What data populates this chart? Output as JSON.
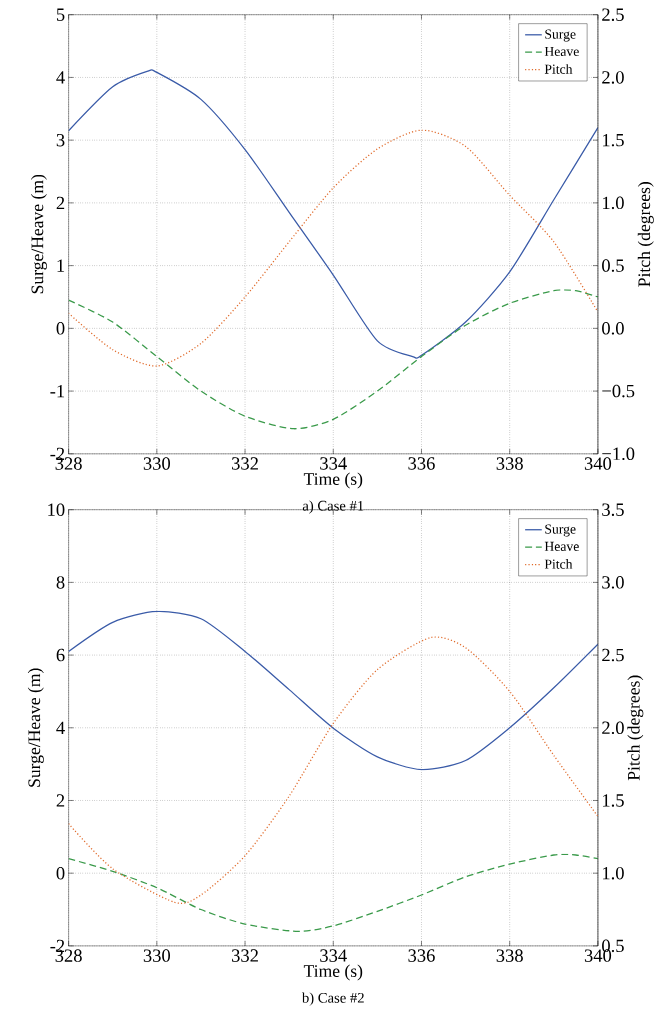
{
  "chart_data": [
    {
      "type": "line",
      "xlabel": "Time (s)",
      "ylabel": "Surge/Heave (m)",
      "y2label": "Pitch (degrees)",
      "xlim": [
        328,
        340
      ],
      "xticks": [
        328,
        330,
        332,
        334,
        336,
        338,
        340
      ],
      "ylim": [
        -2,
        5
      ],
      "yticks": [
        -2,
        -1,
        0,
        1,
        2,
        3,
        4,
        5
      ],
      "y2lim": [
        -1.0,
        2.5
      ],
      "y2ticks": [
        {
          "value": -1.0,
          "label": "−1.0"
        },
        {
          "value": -0.5,
          "label": "−0.5"
        },
        {
          "value": 0,
          "label": "0.0"
        },
        {
          "value": 0.5,
          "label": "0.5"
        },
        {
          "value": 1.0,
          "label": "1.0"
        },
        {
          "value": 1.5,
          "label": "1.5"
        },
        {
          "value": 2.0,
          "label": "2.0"
        },
        {
          "value": 2.5,
          "label": "2.5"
        }
      ],
      "grid": true,
      "legend": "top right",
      "marker": "none",
      "annotations": [
        "a) Case #1"
      ],
      "series": [
        {
          "name": "Surge",
          "color": "#3a5ba8",
          "line_style": "solid",
          "x": [
            328,
            329,
            329.8,
            330,
            331,
            332,
            333,
            334,
            335,
            335.8,
            336,
            337,
            338,
            339,
            340
          ],
          "values": [
            3.15,
            3.85,
            4.1,
            4.08,
            3.65,
            2.85,
            1.85,
            0.85,
            -0.2,
            -0.45,
            -0.43,
            0.1,
            0.9,
            2.05,
            3.2
          ]
        },
        {
          "name": "Heave",
          "color": "#3a9a4a",
          "line_style": "dashed",
          "x": [
            328,
            329,
            330,
            331,
            332,
            333.1,
            334,
            335,
            336,
            337,
            338,
            339,
            339.5,
            340
          ],
          "values": [
            0.45,
            0.1,
            -0.45,
            -1.0,
            -1.4,
            -1.6,
            -1.45,
            -1.0,
            -0.45,
            0.05,
            0.4,
            0.6,
            0.6,
            0.5
          ]
        },
        {
          "name": "Pitch",
          "color": "#e06a2a",
          "line_style": "dotted",
          "axis": "y2",
          "x": [
            328,
            329,
            330,
            331,
            332,
            333,
            334,
            335,
            336,
            337,
            338,
            339,
            340
          ],
          "values": [
            0.12,
            -0.17,
            -0.3,
            -0.12,
            0.25,
            0.69,
            1.12,
            1.43,
            1.58,
            1.45,
            1.06,
            0.69,
            0.13
          ]
        }
      ]
    },
    {
      "type": "line",
      "xlabel": "Time (s)",
      "ylabel": "Surge/Heave (m)",
      "y2label": "Pitch (degrees)",
      "xlim": [
        328,
        340
      ],
      "xticks": [
        328,
        330,
        332,
        334,
        336,
        338,
        340
      ],
      "ylim": [
        -2,
        10
      ],
      "yticks": [
        -2,
        0,
        2,
        4,
        6,
        8,
        10
      ],
      "y2lim": [
        0.5,
        3.5
      ],
      "y2ticks": [
        0.5,
        {
          "value": 1.0,
          "label": "1.0"
        },
        1.5,
        {
          "value": 2.0,
          "label": "2.0"
        },
        2.5,
        {
          "value": 3.0,
          "label": "3.0"
        },
        3.5
      ],
      "grid": true,
      "legend": "top right",
      "marker": "none",
      "annotations": [
        "b) Case #2"
      ],
      "series": [
        {
          "name": "Surge",
          "color": "#3a5ba8",
          "line_style": "solid",
          "x": [
            328,
            329,
            330,
            331,
            332,
            333,
            334,
            335,
            336,
            337,
            338,
            339,
            340
          ],
          "values": [
            6.1,
            6.9,
            7.2,
            7.0,
            6.1,
            5.05,
            3.99,
            3.2,
            2.85,
            3.1,
            4.0,
            5.1,
            6.3
          ]
        },
        {
          "name": "Heave",
          "color": "#3a9a4a",
          "line_style": "dashed",
          "x": [
            328,
            329,
            330,
            331,
            332,
            333.2,
            334,
            335,
            336,
            337,
            338,
            339,
            339.5,
            340
          ],
          "values": [
            0.4,
            0.05,
            -0.4,
            -1.0,
            -1.4,
            -1.6,
            -1.45,
            -1.05,
            -0.6,
            -0.1,
            0.25,
            0.5,
            0.5,
            0.4
          ]
        },
        {
          "name": "Pitch",
          "color": "#e06a2a",
          "line_style": "dotted",
          "axis": "y2",
          "x": [
            328,
            329,
            330.4,
            331,
            332,
            333,
            334,
            335,
            336.2,
            337,
            338,
            339,
            340
          ],
          "values": [
            1.34,
            1.03,
            0.8,
            0.85,
            1.12,
            1.53,
            2.03,
            2.4,
            2.62,
            2.55,
            2.25,
            1.81,
            1.39
          ]
        }
      ]
    }
  ]
}
